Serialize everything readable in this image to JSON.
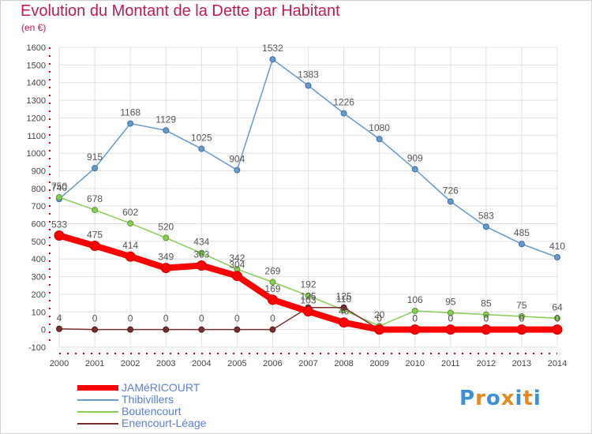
{
  "header": {
    "title": "Evolution du Montant de la Dette par Habitant",
    "unit": "(en €)"
  },
  "logo": {
    "text": "Proxiti"
  },
  "colors": {
    "title": "#c2185b",
    "grid": "#e0e0e0",
    "axis_marks": "#cc0000"
  },
  "chart_data": {
    "type": "line",
    "title": "Evolution du Montant de la Dette par Habitant",
    "ylabel": "(en €)",
    "xlabel": "",
    "x": [
      "2000",
      "2001",
      "2002",
      "2003",
      "2004",
      "2005",
      "2006",
      "2007",
      "2008",
      "2009",
      "2010",
      "2011",
      "2012",
      "2013",
      "2014"
    ],
    "ylim": [
      -100,
      1600
    ],
    "yticks": [
      -100,
      0,
      100,
      200,
      300,
      400,
      500,
      600,
      700,
      800,
      900,
      1000,
      1100,
      1200,
      1300,
      1400,
      1500,
      1600
    ],
    "grid": true,
    "legend_position": "bottom-left",
    "series": [
      {
        "name": "JAMéRICOURT",
        "color": "#ff0000",
        "values": [
          533,
          475,
          414,
          349,
          363,
          304,
          169,
          103,
          40,
          0,
          0,
          0,
          0,
          0,
          0
        ],
        "labels": [
          "533",
          "475",
          "414",
          "349",
          "363",
          "304",
          "169",
          "103",
          "40",
          "0",
          "0",
          "0",
          "0",
          "0",
          "0"
        ]
      },
      {
        "name": "Thibivillers",
        "color": "#6699cc",
        "values": [
          740,
          915,
          1168,
          1129,
          1025,
          904,
          1532,
          1383,
          1226,
          1080,
          909,
          726,
          583,
          485,
          410
        ],
        "labels": [
          "740",
          "915",
          "1168",
          "1129",
          "1025",
          "904",
          "1532",
          "1383",
          "1226",
          "1080",
          "909",
          "726",
          "583",
          "485",
          "410"
        ]
      },
      {
        "name": "Boutencourt",
        "color": "#88cc55",
        "values": [
          750,
          678,
          602,
          520,
          434,
          342,
          269,
          192,
          110,
          20,
          106,
          95,
          85,
          75,
          64
        ],
        "labels": [
          "750",
          "678",
          "602",
          "520",
          "434",
          "342",
          "269",
          "192",
          "110",
          "20",
          "106",
          "95",
          "85",
          "75",
          "64"
        ]
      },
      {
        "name": "Enencourt-Léage",
        "color": "#7a2e2e",
        "values": [
          4,
          0,
          0,
          0,
          0,
          0,
          0,
          125,
          125,
          0,
          0,
          0,
          0,
          0,
          0
        ],
        "labels": [
          "4",
          "0",
          "0",
          "0",
          "0",
          "0",
          "0",
          "125",
          "125",
          "0",
          "0",
          "0",
          "0",
          "0",
          "0"
        ]
      }
    ]
  }
}
